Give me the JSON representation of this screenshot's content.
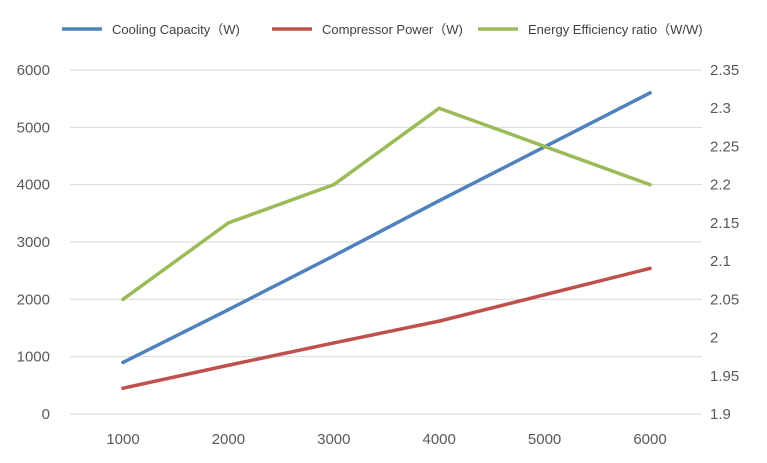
{
  "chart_data": {
    "type": "line",
    "title": "",
    "xlabel": "",
    "ylabel": "",
    "y2label": "",
    "x": [
      1000,
      2000,
      3000,
      4000,
      5000,
      6000
    ],
    "x_tick_labels": [
      "1000",
      "2000",
      "3000",
      "4000",
      "5000",
      "6000"
    ],
    "ylim": [
      0,
      6000
    ],
    "y_ticks": [
      0,
      1000,
      2000,
      3000,
      4000,
      5000,
      6000
    ],
    "y_tick_labels": [
      "0",
      "1000",
      "2000",
      "3000",
      "4000",
      "5000",
      "6000"
    ],
    "y2lim": [
      1.9,
      2.35
    ],
    "y2_ticks": [
      1.9,
      1.95,
      2.0,
      2.05,
      2.1,
      2.15,
      2.2,
      2.25,
      2.3,
      2.35
    ],
    "y2_tick_labels": [
      "1.9",
      "1.95",
      "2",
      "2.05",
      "2.1",
      "2.15",
      "2.2",
      "2.25",
      "2.3",
      "2.35"
    ],
    "grid": true,
    "legend_position": "top",
    "series": [
      {
        "name": "Cooling Capacity（W)",
        "axis": "left",
        "color": "#4f81bd",
        "values": [
          900,
          1820,
          2760,
          3720,
          4660,
          5600
        ]
      },
      {
        "name": "Compressor Power（W)",
        "axis": "left",
        "color": "#c0504d",
        "values": [
          450,
          850,
          1240,
          1620,
          2080,
          2540
        ]
      },
      {
        "name": "Energy Efficiency ratio（W/W)",
        "axis": "right",
        "color": "#9bbb59",
        "values": [
          2.05,
          2.15,
          2.2,
          2.3,
          2.25,
          2.2
        ]
      }
    ]
  }
}
